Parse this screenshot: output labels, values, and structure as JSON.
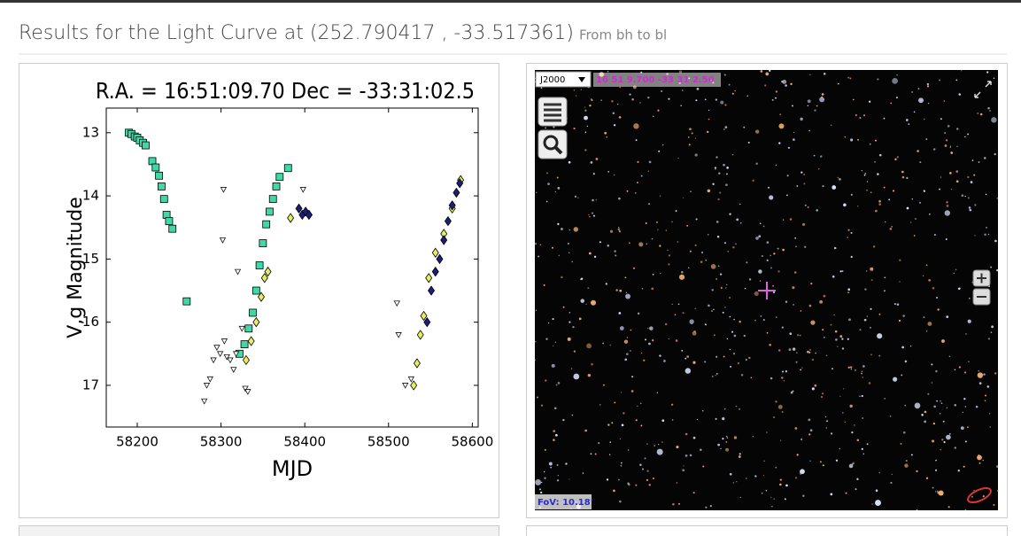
{
  "header": {
    "title": "Results for the Light Curve at (252.790417 , -33.517361)",
    "subtitle": "From bh to bl"
  },
  "chart_data": {
    "type": "scatter",
    "title": "R.A. = 16:51:09.70   Dec = -33:31:02.5",
    "xlabel": "MJD",
    "ylabel": "V,g Magnitude",
    "xlim": [
      58163,
      58607
    ],
    "xticks": [
      58200,
      58300,
      58400,
      58500,
      58600
    ],
    "ylim": [
      17.66,
      12.61
    ],
    "yticks": [
      13,
      14,
      15,
      16,
      17
    ],
    "series": [
      {
        "marker": "square",
        "color": "#3fd9a8",
        "x": [
          58190,
          58193,
          58197,
          58200,
          58203,
          58207,
          58210,
          58218,
          58222,
          58226,
          58229,
          58232,
          58235,
          58238,
          58242,
          58259,
          58322,
          58328,
          58333,
          58338,
          58342,
          58346,
          58350,
          58354,
          58358,
          58362,
          58366,
          58370,
          58380
        ],
        "values": [
          13.0,
          13.02,
          13.06,
          13.08,
          13.12,
          13.16,
          13.2,
          13.45,
          13.55,
          13.68,
          13.85,
          14.05,
          14.3,
          14.4,
          14.52,
          15.67,
          16.5,
          16.35,
          16.1,
          15.85,
          15.5,
          15.1,
          14.75,
          14.45,
          14.25,
          14.05,
          13.85,
          13.7,
          13.56
        ]
      },
      {
        "marker": "diamond",
        "color": "#e4ee5e",
        "x": [
          58330,
          58336,
          58342,
          58348,
          58352,
          58356,
          58383,
          58405,
          58530,
          58534,
          58538,
          58542,
          58548,
          58556,
          58566,
          58576,
          58586
        ],
        "values": [
          16.6,
          16.3,
          16.0,
          15.6,
          15.3,
          15.2,
          14.35,
          14.3,
          17.0,
          16.65,
          16.2,
          15.9,
          15.3,
          14.9,
          14.6,
          14.2,
          13.75
        ]
      },
      {
        "marker": "diamond",
        "color": "#1b1f7a",
        "x": [
          58393,
          58397,
          58401,
          58405,
          58546,
          58551,
          58556,
          58561,
          58566,
          58571,
          58576,
          58581,
          58585
        ],
        "values": [
          14.2,
          14.3,
          14.25,
          14.3,
          16.0,
          15.5,
          15.2,
          15.0,
          14.7,
          14.4,
          14.15,
          13.95,
          13.8
        ]
      },
      {
        "marker": "triangle",
        "color": "#111111",
        "x": [
          58280,
          58283,
          58287,
          58291,
          58295,
          58299,
          58303,
          58302,
          58304,
          58307,
          58311,
          58315,
          58318,
          58320,
          58325,
          58329,
          58332,
          58398,
          58510,
          58512,
          58520,
          58527
        ],
        "values": [
          17.25,
          17.0,
          16.9,
          16.6,
          16.4,
          16.5,
          13.9,
          14.7,
          16.3,
          16.55,
          16.6,
          16.75,
          16.5,
          15.2,
          16.1,
          17.05,
          17.1,
          13.9,
          15.7,
          16.2,
          17.0,
          16.9
        ]
      }
    ]
  },
  "sky": {
    "frame": "J2000",
    "coords": "16 51 9.700 -33 31 2.50",
    "fov": "FoV: 10.18'"
  }
}
